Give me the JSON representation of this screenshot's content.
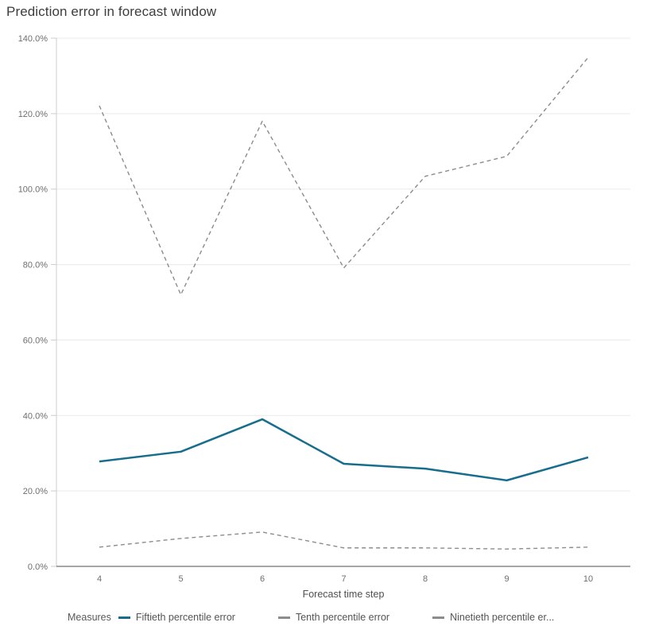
{
  "title": "Prediction error in forecast window",
  "chart_data": {
    "type": "line",
    "x": [
      "4",
      "5",
      "6",
      "7",
      "8",
      "9",
      "10"
    ],
    "xlabel": "Forecast time step",
    "ylabel": "",
    "ylim": [
      0,
      140
    ],
    "y_unit": "percent",
    "grid": "horizontal",
    "legend_title": "Measures",
    "legend_position": "bottom",
    "yticks": [
      {
        "value": 0,
        "label": "0.0%"
      },
      {
        "value": 20,
        "label": "20.0%"
      },
      {
        "value": 40,
        "label": "40.0%"
      },
      {
        "value": 60,
        "label": "60.0%"
      },
      {
        "value": 80,
        "label": "80.0%"
      },
      {
        "value": 100,
        "label": "100.0%"
      },
      {
        "value": 120,
        "label": "120.0%"
      },
      {
        "value": 140,
        "label": "140.0%"
      }
    ],
    "series": [
      {
        "name": "Fiftieth percentile error",
        "style": "solid",
        "color": "#176e8c",
        "values": [
          27.8,
          30.4,
          39.0,
          27.2,
          25.9,
          22.8,
          28.9
        ]
      },
      {
        "name": "Tenth percentile error",
        "style": "dashed",
        "color": "#8c8c8c",
        "values": [
          5.1,
          7.4,
          9.1,
          4.9,
          4.9,
          4.6,
          5.1
        ]
      },
      {
        "name": "Ninetieth percentile er...",
        "style": "dashed",
        "color": "#8c8c8c",
        "values": [
          122.1,
          72.0,
          118.0,
          79.1,
          103.4,
          108.7,
          134.9
        ]
      }
    ]
  },
  "colors": {
    "accent_teal": "#176e8c",
    "series_gray": "#8c8c8c",
    "gridline": "#e9e9e9",
    "axis_line": "#cccccc",
    "baseline": "#4f4f4f",
    "tick_label": "#6e6e6e",
    "background": "#ffffff"
  }
}
